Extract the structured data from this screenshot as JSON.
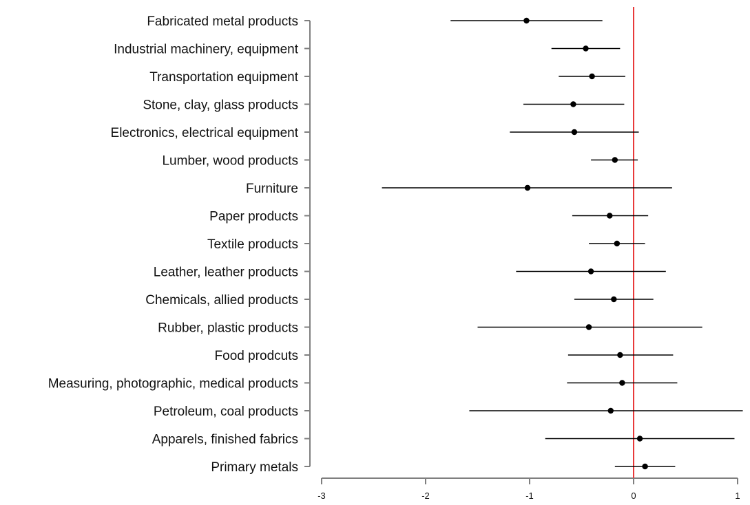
{
  "chart_data": {
    "type": "scatter",
    "subtype": "forest-plot",
    "title": "",
    "xlabel": "",
    "ylabel": "",
    "xlim": [
      -3,
      1
    ],
    "x_ticks": [
      -3,
      -2,
      -1,
      0,
      1
    ],
    "x_tick_labels": [
      "-3",
      "-2",
      "-1",
      "0",
      "1"
    ],
    "reference_line": {
      "x": 0,
      "color": "#e8393a"
    },
    "colors": {
      "point": "#000000",
      "interval": "#000000",
      "axis": "#7f7f7f"
    },
    "grid": false,
    "legend": "none",
    "categories": [
      "Fabricated metal products",
      "Industrial machinery, equipment",
      "Transportation equipment",
      "Stone, clay, glass products",
      "Electronics, electrical equipment",
      "Lumber, wood products",
      "Furniture",
      "Paper products",
      "Textile products",
      "Leather, leather products",
      "Chemicals, allied products",
      "Rubber, plastic products",
      "Food prodcuts",
      "Measuring, photographic, medical products",
      "Petroleum, coal products",
      "Apparels, finished fabrics",
      "Primary metals"
    ],
    "estimates": [
      -1.03,
      -0.46,
      -0.4,
      -0.58,
      -0.57,
      -0.18,
      -1.02,
      -0.23,
      -0.16,
      -0.41,
      -0.19,
      -0.43,
      -0.13,
      -0.11,
      -0.22,
      0.06,
      0.11
    ],
    "lower": [
      -1.76,
      -0.79,
      -0.72,
      -1.06,
      -1.19,
      -0.41,
      -2.42,
      -0.59,
      -0.43,
      -1.13,
      -0.57,
      -1.5,
      -0.63,
      -0.64,
      -1.58,
      -0.85,
      -0.18
    ],
    "upper": [
      -0.3,
      -0.13,
      -0.08,
      -0.09,
      0.05,
      0.04,
      0.37,
      0.14,
      0.11,
      0.31,
      0.19,
      0.66,
      0.38,
      0.42,
      1.15,
      0.97,
      0.4
    ]
  }
}
